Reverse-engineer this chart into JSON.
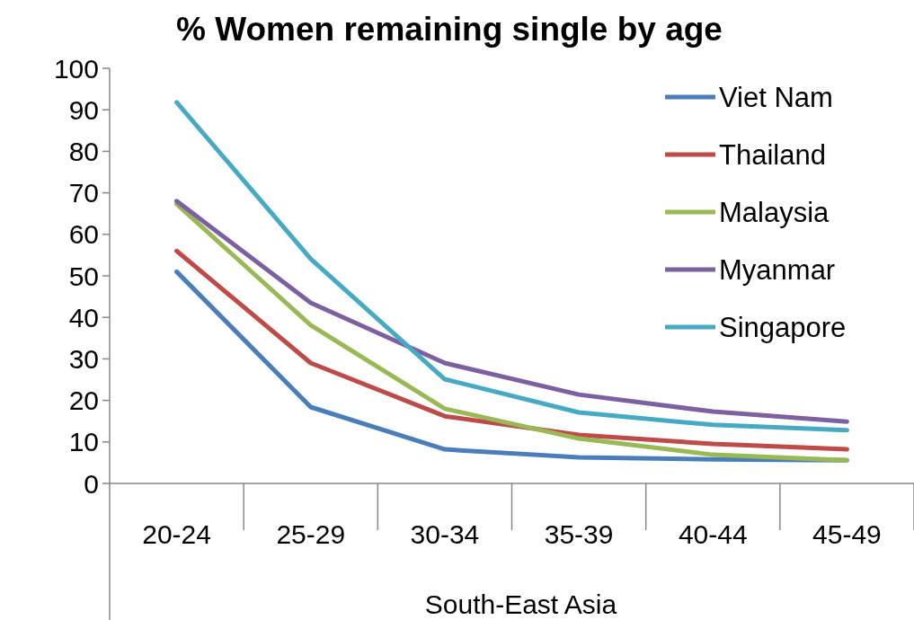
{
  "chart_data": {
    "type": "line",
    "title": "% Women remaining single by age",
    "xlabel": "South-East Asia",
    "categories": [
      "20-24",
      "25-29",
      "30-34",
      "35-39",
      "40-44",
      "45-49"
    ],
    "series": [
      {
        "name": "Viet Nam",
        "color": "#4a7ebb",
        "values": [
          51,
          18.4,
          8.2,
          6.3,
          5.8,
          5.6
        ]
      },
      {
        "name": "Thailand",
        "color": "#be4b48",
        "values": [
          56,
          29,
          16.2,
          11.7,
          9.5,
          8.2
        ]
      },
      {
        "name": "Malaysia",
        "color": "#98b954",
        "values": [
          67.3,
          38.1,
          18,
          10.8,
          6.9,
          5.6
        ]
      },
      {
        "name": "Myanmar",
        "color": "#7d60a0",
        "values": [
          68,
          43.5,
          29,
          21.4,
          17.3,
          14.9
        ]
      },
      {
        "name": "Singapore",
        "color": "#46aac5",
        "values": [
          91.8,
          54.1,
          25.1,
          17.1,
          14.1,
          12.8
        ]
      }
    ],
    "ylim": [
      0,
      100
    ],
    "yticks": [
      0,
      10,
      20,
      30,
      40,
      50,
      60,
      70,
      80,
      90,
      100
    ],
    "grid": false,
    "legend": "top right",
    "marker": "none",
    "line_style": "solid"
  }
}
